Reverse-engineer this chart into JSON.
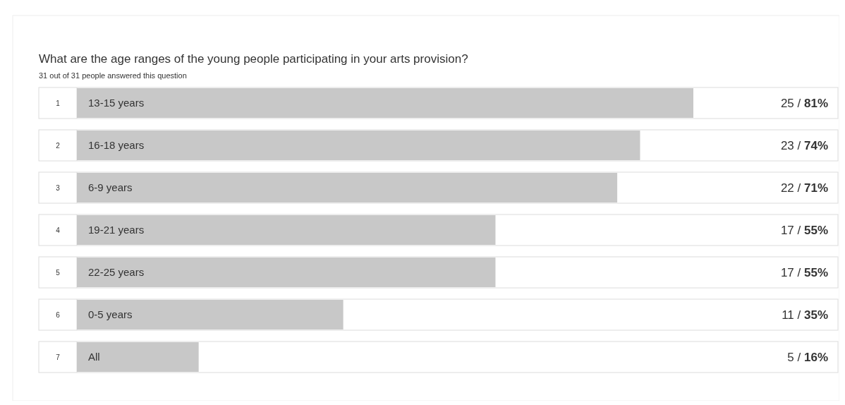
{
  "chart_data": {
    "type": "bar",
    "orientation": "horizontal",
    "title": "What are the age ranges of the young people participating in your arts provision?",
    "subtitle": "31 out of 31 people answered this question",
    "categories": [
      "13-15 years",
      "16-18 years",
      "6-9 years",
      "19-21 years",
      "22-25 years",
      "0-5 years",
      "All"
    ],
    "values": [
      81,
      74,
      71,
      55,
      55,
      35,
      16
    ],
    "value_labels": [
      "25 / 81%",
      "23 / 74%",
      "22 / 71%",
      "17 / 55%",
      "17 / 55%",
      "11 / 35%",
      "5 / 16%"
    ],
    "color": "#c8c8c8",
    "xlim": [
      0,
      100
    ],
    "annotations": [
      "1",
      "2",
      "3",
      "4",
      "5",
      "6",
      "7"
    ]
  }
}
